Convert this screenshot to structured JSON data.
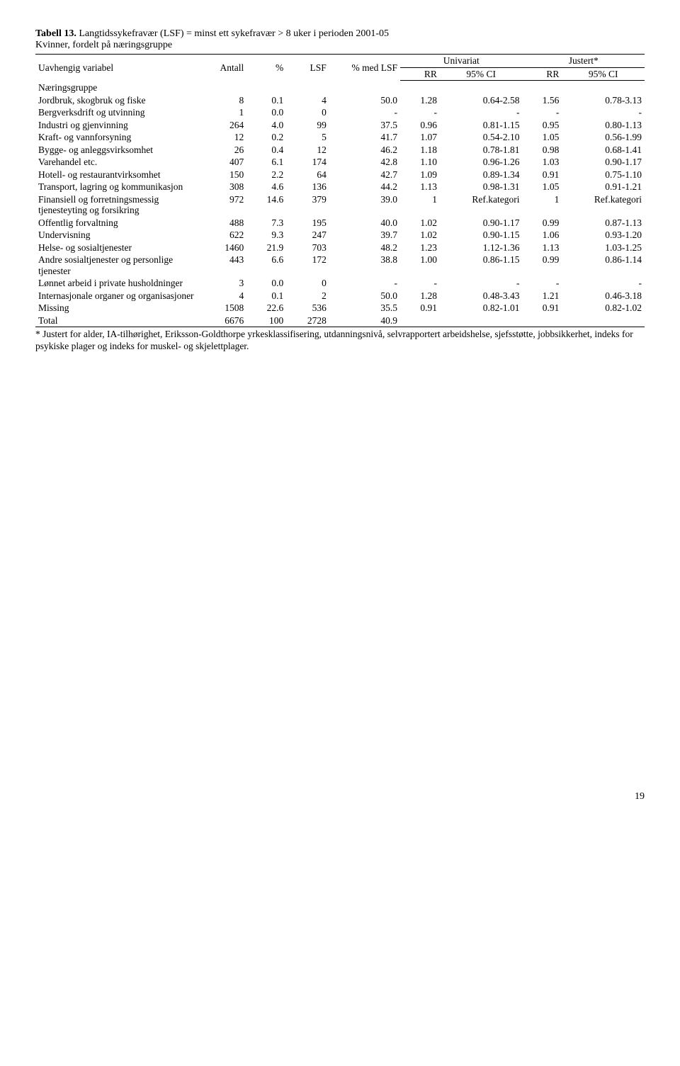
{
  "title": {
    "bold": "Tabell 13.",
    "rest": " Langtidssykefravær (LSF) = minst ett sykefravær > 8 uker i perioden 2001-05",
    "line2": "Kvinner, fordelt på næringsgruppe"
  },
  "header": {
    "uavhengig": "Uavhengig variabel",
    "antall": "Antall",
    "pct": "%",
    "lsf": "LSF",
    "pctmed": "% med LSF",
    "univariat": "Univariat",
    "justert": "Justert*",
    "rr": "RR",
    "ci": "95% CI"
  },
  "section_label": "Næringsgruppe",
  "rows": [
    {
      "label": "Jordbruk, skogbruk og fiske",
      "antall": "8",
      "pct": "0.1",
      "lsf": "4",
      "pctmed": "50.0",
      "rr1": "1.28",
      "ci1": "0.64-2.58",
      "rr2": "1.56",
      "ci2": "0.78-3.13"
    },
    {
      "label": "Bergverksdrift og utvinning",
      "antall": "1",
      "pct": "0.0",
      "lsf": "0",
      "pctmed": "-",
      "rr1": "-",
      "ci1": "-",
      "rr2": "-",
      "ci2": "-"
    },
    {
      "label": "Industri og gjenvinning",
      "antall": "264",
      "pct": "4.0",
      "lsf": "99",
      "pctmed": "37.5",
      "rr1": "0.96",
      "ci1": "0.81-1.15",
      "rr2": "0.95",
      "ci2": "0.80-1.13"
    },
    {
      "label": "Kraft- og vannforsyning",
      "antall": "12",
      "pct": "0.2",
      "lsf": "5",
      "pctmed": "41.7",
      "rr1": "1.07",
      "ci1": "0.54-2.10",
      "rr2": "1.05",
      "ci2": "0.56-1.99"
    },
    {
      "label": "Bygge- og anleggsvirksomhet",
      "antall": "26",
      "pct": "0.4",
      "lsf": "12",
      "pctmed": "46.2",
      "rr1": "1.18",
      "ci1": "0.78-1.81",
      "rr2": "0.98",
      "ci2": "0.68-1.41"
    },
    {
      "label": "Varehandel etc.",
      "antall": "407",
      "pct": "6.1",
      "lsf": "174",
      "pctmed": "42.8",
      "rr1": "1.10",
      "ci1": "0.96-1.26",
      "rr2": "1.03",
      "ci2": "0.90-1.17"
    },
    {
      "label": "Hotell- og restaurantvirksomhet",
      "antall": "150",
      "pct": "2.2",
      "lsf": "64",
      "pctmed": "42.7",
      "rr1": "1.09",
      "ci1": "0.89-1.34",
      "rr2": "0.91",
      "ci2": "0.75-1.10"
    },
    {
      "label": "Transport, lagring og kommunikasjon",
      "antall": "308",
      "pct": "4.6",
      "lsf": "136",
      "pctmed": "44.2",
      "rr1": "1.13",
      "ci1": "0.98-1.31",
      "rr2": "1.05",
      "ci2": "0.91-1.21"
    },
    {
      "label": "Finansiell og forretningsmessig tjenesteyting og forsikring",
      "antall": "972",
      "pct": "14.6",
      "lsf": "379",
      "pctmed": "39.0",
      "rr1": "1",
      "ci1": "Ref.kategori",
      "rr2": "1",
      "ci2": "Ref.kategori"
    },
    {
      "label": "Offentlig forvaltning",
      "antall": "488",
      "pct": "7.3",
      "lsf": "195",
      "pctmed": "40.0",
      "rr1": "1.02",
      "ci1": "0.90-1.17",
      "rr2": "0.99",
      "ci2": "0.87-1.13"
    },
    {
      "label": "Undervisning",
      "antall": "622",
      "pct": "9.3",
      "lsf": "247",
      "pctmed": "39.7",
      "rr1": "1.02",
      "ci1": "0.90-1.15",
      "rr2": "1.06",
      "ci2": "0.93-1.20"
    },
    {
      "label": "Helse- og sosialtjenester",
      "antall": "1460",
      "pct": "21.9",
      "lsf": "703",
      "pctmed": "48.2",
      "rr1": "1.23",
      "ci1": "1.12-1.36",
      "rr2": "1.13",
      "ci2": "1.03-1.25"
    },
    {
      "label": "Andre sosialtjenester og personlige tjenester",
      "antall": "443",
      "pct": "6.6",
      "lsf": "172",
      "pctmed": "38.8",
      "rr1": "1.00",
      "ci1": "0.86-1.15",
      "rr2": "0.99",
      "ci2": "0.86-1.14"
    },
    {
      "label": "Lønnet arbeid i private husholdninger",
      "antall": "3",
      "pct": "0.0",
      "lsf": "0",
      "pctmed": "-",
      "rr1": "-",
      "ci1": "-",
      "rr2": "-",
      "ci2": "-"
    },
    {
      "label": "Internasjonale organer og organisasjoner",
      "antall": "4",
      "pct": "0.1",
      "lsf": "2",
      "pctmed": "50.0",
      "rr1": "1.28",
      "ci1": "0.48-3.43",
      "rr2": "1.21",
      "ci2": "0.46-3.18"
    },
    {
      "label": "Missing",
      "antall": "1508",
      "pct": "22.6",
      "lsf": "536",
      "pctmed": "35.5",
      "rr1": "0.91",
      "ci1": "0.82-1.01",
      "rr2": "0.91",
      "ci2": "0.82-1.02"
    }
  ],
  "total": {
    "label": "Total",
    "antall": "6676",
    "pct": "100",
    "lsf": "2728",
    "pctmed": "40.9"
  },
  "footnote": "* Justert for alder, IA-tilhørighet, Eriksson-Goldthorpe yrkesklassifisering, utdanningsnivå, selvrapportert arbeidshelse, sjefsstøtte, jobbsikkerhet, indeks for psykiske plager og indeks for muskel- og skjelettplager.",
  "pagenum": "19"
}
